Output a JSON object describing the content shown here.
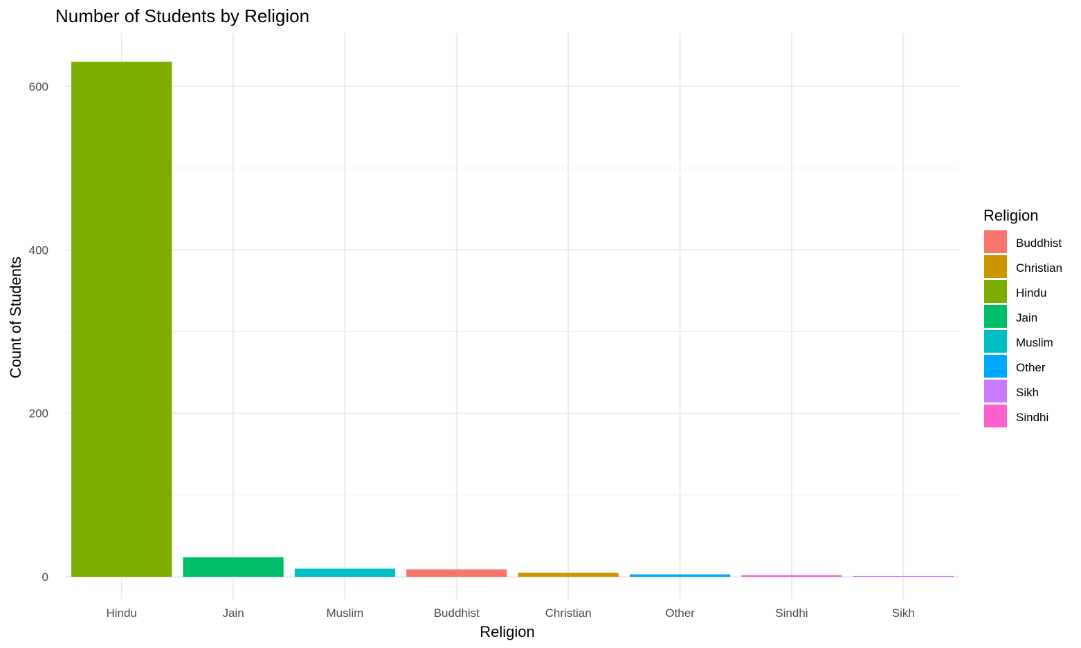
{
  "chart_data": {
    "type": "bar",
    "title": "Number of Students by Religion",
    "xlabel": "Religion",
    "ylabel": "Count of Students",
    "categories": [
      "Hindu",
      "Jain",
      "Muslim",
      "Buddhist",
      "Christian",
      "Other",
      "Sindhi",
      "Sikh"
    ],
    "values": [
      630,
      24,
      10,
      9,
      5,
      3,
      2,
      1
    ],
    "colors": [
      "#7CAE00",
      "#00BE67",
      "#00BFC4",
      "#F8766D",
      "#CD9600",
      "#00A9FF",
      "#FF61CC",
      "#C77CFF"
    ],
    "ylim": [
      -27,
      665
    ],
    "yticks": [
      0,
      200,
      400,
      600
    ],
    "grid": true,
    "legend": {
      "title": "Religion",
      "position": "right",
      "entries": [
        {
          "label": "Buddhist",
          "color": "#F8766D"
        },
        {
          "label": "Christian",
          "color": "#CD9600"
        },
        {
          "label": "Hindu",
          "color": "#7CAE00"
        },
        {
          "label": "Jain",
          "color": "#00BE67"
        },
        {
          "label": "Muslim",
          "color": "#00BFC4"
        },
        {
          "label": "Other",
          "color": "#00A9FF"
        },
        {
          "label": "Sikh",
          "color": "#C77CFF"
        },
        {
          "label": "Sindhi",
          "color": "#FF61CC"
        }
      ]
    }
  }
}
